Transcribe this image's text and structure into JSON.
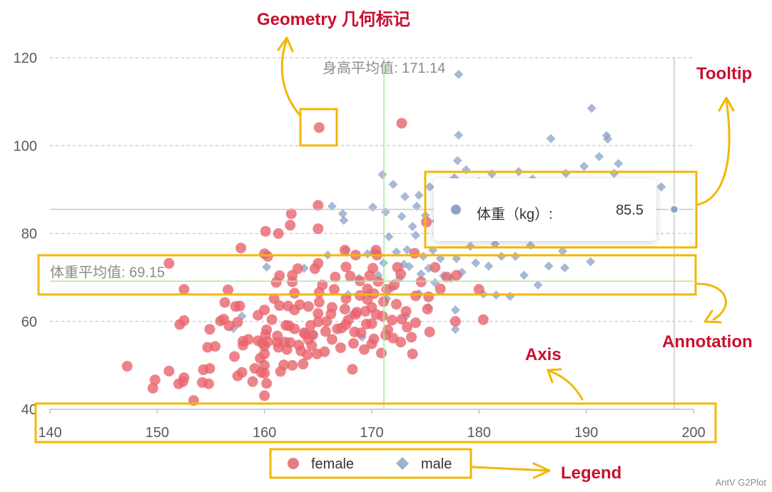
{
  "callouts": {
    "geometry": "Geometry 几何标记",
    "tooltip": "Tooltip",
    "annotation": "Annotation",
    "axis": "Axis",
    "legend": "Legend"
  },
  "tooltip": {
    "name": "体重（kg）:",
    "value": "85.5",
    "color": "#8ba2c9"
  },
  "watermark": "AntV G2Plot",
  "colors": {
    "female": "#e8646d",
    "male": "#8ba2c9",
    "callout_text": "#c8102e",
    "callout_box": "#f2b705",
    "mean_line": "#a8e89a"
  },
  "chart_data": {
    "type": "scatter",
    "title": "",
    "xlabel": "",
    "ylabel": "",
    "xlim": [
      140,
      200
    ],
    "ylim": [
      40,
      120
    ],
    "xticks": [
      "140",
      "150",
      "160",
      "170",
      "180",
      "190",
      "200"
    ],
    "yticks": [
      "40",
      "60",
      "80",
      "100",
      "120"
    ],
    "grid": "horizontal dashed",
    "legend": {
      "position": "bottom",
      "entries": [
        "female",
        "male"
      ]
    },
    "annotations": {
      "height_mean_label": "身高平均值: 171.14",
      "height_mean": 171.14,
      "weight_mean_label": "体重平均值: 69.15",
      "weight_mean": 69.15
    },
    "crosshair": {
      "x": 198.2,
      "y": 85.5
    },
    "series": [
      {
        "name": "female",
        "shape": "circle",
        "points": [
          [
            147.2,
            49.8
          ],
          [
            149.6,
            44.8
          ],
          [
            149.8,
            46.7
          ],
          [
            151.1,
            48.7
          ],
          [
            152.0,
            45.8
          ],
          [
            152.4,
            46.3
          ],
          [
            152.5,
            47.2
          ],
          [
            152.1,
            59.3
          ],
          [
            152.5,
            60.2
          ],
          [
            151.1,
            73.2
          ],
          [
            152.5,
            67.3
          ],
          [
            153.4,
            42.0
          ],
          [
            154.2,
            46.1
          ],
          [
            154.8,
            45.8
          ],
          [
            154.3,
            49.0
          ],
          [
            154.9,
            49.3
          ],
          [
            154.7,
            54.1
          ],
          [
            154.9,
            58.2
          ],
          [
            155.4,
            54.3
          ],
          [
            155.9,
            60.1
          ],
          [
            156.3,
            64.3
          ],
          [
            156.2,
            60.5
          ],
          [
            156.6,
            67.2
          ],
          [
            157.2,
            52.0
          ],
          [
            156.7,
            59.0
          ],
          [
            157.3,
            63.4
          ],
          [
            157.5,
            47.6
          ],
          [
            157.5,
            59.8
          ],
          [
            157.7,
            63.5
          ],
          [
            158.0,
            54.6
          ],
          [
            158.0,
            55.5
          ],
          [
            157.9,
            48.4
          ],
          [
            157.8,
            76.7
          ],
          [
            158.9,
            46.3
          ],
          [
            159.4,
            55.6
          ],
          [
            159.7,
            48.4
          ],
          [
            159.1,
            49.3
          ],
          [
            160.0,
            50.0
          ],
          [
            160.0,
            48.2
          ],
          [
            159.6,
            51.6
          ],
          [
            159.8,
            55.1
          ],
          [
            160.0,
            54.4
          ],
          [
            160.1,
            57.0
          ],
          [
            160.2,
            58.1
          ],
          [
            159.4,
            61.4
          ],
          [
            160.0,
            62.6
          ],
          [
            160.0,
            43.1
          ],
          [
            160.2,
            45.9
          ],
          [
            160.0,
            52.6
          ],
          [
            160.3,
            55.4
          ],
          [
            160.7,
            60.4
          ],
          [
            160.0,
            75.4
          ],
          [
            160.3,
            74.8
          ],
          [
            160.1,
            80.5
          ],
          [
            160.9,
            65.2
          ],
          [
            161.5,
            48.6
          ],
          [
            161.2,
            55.2
          ],
          [
            161.4,
            63.6
          ],
          [
            161.1,
            68.9
          ],
          [
            161.3,
            80.0
          ],
          [
            161.4,
            70.4
          ],
          [
            161.8,
            50.1
          ],
          [
            161.3,
            54.1
          ],
          [
            161.9,
            55.3
          ],
          [
            161.2,
            56.7
          ],
          [
            162.1,
            53.6
          ],
          [
            162.0,
            59.1
          ],
          [
            162.3,
            59.0
          ],
          [
            162.6,
            50.0
          ],
          [
            162.8,
            58.3
          ],
          [
            162.4,
            55.2
          ],
          [
            162.8,
            62.6
          ],
          [
            162.6,
            69.0
          ],
          [
            162.6,
            70.5
          ],
          [
            162.8,
            66.4
          ],
          [
            162.5,
            84.5
          ],
          [
            162.4,
            81.9
          ],
          [
            163.1,
            72.0
          ],
          [
            163.3,
            63.8
          ],
          [
            163.4,
            53.3
          ],
          [
            163.2,
            54.6
          ],
          [
            163.7,
            57.4
          ],
          [
            163.6,
            50.3
          ],
          [
            164.0,
            52.4
          ],
          [
            164.1,
            55.9
          ],
          [
            164.3,
            59.1
          ],
          [
            164.4,
            54.5
          ],
          [
            164.1,
            63.4
          ],
          [
            164.7,
            72.0
          ],
          [
            164.5,
            56.9
          ],
          [
            164.9,
            52.6
          ],
          [
            165.0,
            59.9
          ],
          [
            165.0,
            61.8
          ],
          [
            165.1,
            64.4
          ],
          [
            165.1,
            66.6
          ],
          [
            165.4,
            68.3
          ],
          [
            165.6,
            53.1
          ],
          [
            165.0,
            73.2
          ],
          [
            165.0,
            81.1
          ],
          [
            165.0,
            86.4
          ],
          [
            165.1,
            104.1
          ],
          [
            165.7,
            57.7
          ],
          [
            165.8,
            60.0
          ],
          [
            166.3,
            55.9
          ],
          [
            166.3,
            63.2
          ],
          [
            166.5,
            67.3
          ],
          [
            166.6,
            70.1
          ],
          [
            166.8,
            58.3
          ],
          [
            167.1,
            54.0
          ],
          [
            167.2,
            58.5
          ],
          [
            167.6,
            59.3
          ],
          [
            167.5,
            62.8
          ],
          [
            167.6,
            65.2
          ],
          [
            167.6,
            72.4
          ],
          [
            167.5,
            76.2
          ],
          [
            167.8,
            60.3
          ],
          [
            168.2,
            49.1
          ],
          [
            168.3,
            55.0
          ],
          [
            168.4,
            57.6
          ],
          [
            168.5,
            61.6
          ],
          [
            168.6,
            62.1
          ],
          [
            168.9,
            65.9
          ],
          [
            168.9,
            69.2
          ],
          [
            168.5,
            75.1
          ],
          [
            169.3,
            53.6
          ],
          [
            169.5,
            59.4
          ],
          [
            169.4,
            62.3
          ],
          [
            169.6,
            65.0
          ],
          [
            169.6,
            67.4
          ],
          [
            169.8,
            70.4
          ],
          [
            170.0,
            54.9
          ],
          [
            170.2,
            56.0
          ],
          [
            170.0,
            59.5
          ],
          [
            170.4,
            61.6
          ],
          [
            170.0,
            63.2
          ],
          [
            170.2,
            66.3
          ],
          [
            170.6,
            69.1
          ],
          [
            170.1,
            72.1
          ],
          [
            170.5,
            75.1
          ],
          [
            170.4,
            76.2
          ],
          [
            170.9,
            52.8
          ],
          [
            171.3,
            56.9
          ],
          [
            171.1,
            64.5
          ],
          [
            171.4,
            67.3
          ],
          [
            171.5,
            58.1
          ],
          [
            172.0,
            56.2
          ],
          [
            171.9,
            60.3
          ],
          [
            172.3,
            63.9
          ],
          [
            172.1,
            68.3
          ],
          [
            172.4,
            72.3
          ],
          [
            172.7,
            55.3
          ],
          [
            172.8,
            60.5
          ],
          [
            172.7,
            70.8
          ],
          [
            172.8,
            105.1
          ],
          [
            173.3,
            58.7
          ],
          [
            173.2,
            62.3
          ],
          [
            173.8,
            52.6
          ],
          [
            173.7,
            56.4
          ],
          [
            174.1,
            59.7
          ],
          [
            174.1,
            65.8
          ],
          [
            174.0,
            75.5
          ],
          [
            174.6,
            69.0
          ],
          [
            175.4,
            57.6
          ],
          [
            175.2,
            62.8
          ],
          [
            175.3,
            65.6
          ],
          [
            175.1,
            82.6
          ],
          [
            175.9,
            72.3
          ],
          [
            176.4,
            67.4
          ],
          [
            177.0,
            70.1
          ],
          [
            177.8,
            60.0
          ],
          [
            177.9,
            70.5
          ],
          [
            180.0,
            67.3
          ],
          [
            180.4,
            60.4
          ],
          [
            158.5,
            55.9
          ],
          [
            162.2,
            63.5
          ],
          [
            163.8,
            57.1
          ],
          [
            166.2,
            61.7
          ],
          [
            168.0,
            70.3
          ],
          [
            169.0,
            57.4
          ],
          [
            171.0,
            61.2
          ]
        ]
      },
      {
        "name": "male",
        "shape": "diamond",
        "points": [
          [
            157.1,
            58.4
          ],
          [
            157.9,
            61.2
          ],
          [
            160.2,
            72.4
          ],
          [
            163.7,
            72.1
          ],
          [
            164.6,
            57.1
          ],
          [
            165.9,
            75.1
          ],
          [
            166.3,
            86.2
          ],
          [
            167.3,
            84.5
          ],
          [
            167.4,
            83.0
          ],
          [
            167.6,
            76.3
          ],
          [
            167.8,
            66.1
          ],
          [
            168.2,
            61.6
          ],
          [
            168.8,
            69.8
          ],
          [
            169.1,
            56.4
          ],
          [
            169.6,
            75.4
          ],
          [
            169.7,
            66.5
          ],
          [
            170.1,
            86.0
          ],
          [
            170.2,
            75.8
          ],
          [
            170.6,
            70.5
          ],
          [
            171.0,
            93.4
          ],
          [
            171.1,
            73.3
          ],
          [
            171.3,
            84.9
          ],
          [
            171.4,
            65.2
          ],
          [
            171.6,
            79.3
          ],
          [
            171.9,
            67.6
          ],
          [
            172.0,
            91.2
          ],
          [
            172.3,
            75.8
          ],
          [
            172.6,
            69.8
          ],
          [
            172.8,
            83.9
          ],
          [
            173.0,
            73.0
          ],
          [
            173.1,
            88.4
          ],
          [
            173.2,
            61.2
          ],
          [
            173.3,
            76.3
          ],
          [
            173.5,
            72.5
          ],
          [
            173.8,
            81.6
          ],
          [
            174.1,
            79.6
          ],
          [
            174.2,
            86.2
          ],
          [
            174.4,
            66.3
          ],
          [
            174.4,
            88.7
          ],
          [
            174.6,
            70.8
          ],
          [
            174.8,
            74.8
          ],
          [
            175.0,
            84.1
          ],
          [
            175.3,
            63.2
          ],
          [
            175.3,
            72.1
          ],
          [
            175.4,
            90.6
          ],
          [
            175.7,
            76.2
          ],
          [
            175.9,
            68.8
          ],
          [
            176.0,
            82.8
          ],
          [
            176.2,
            87.5
          ],
          [
            176.4,
            74.3
          ],
          [
            176.6,
            91.2
          ],
          [
            176.7,
            70.4
          ],
          [
            176.9,
            79.2
          ],
          [
            177.2,
            84.6
          ],
          [
            177.4,
            69.8
          ],
          [
            177.5,
            85.4
          ],
          [
            177.7,
            92.7
          ],
          [
            177.8,
            58.2
          ],
          [
            177.8,
            62.6
          ],
          [
            177.9,
            74.3
          ],
          [
            178.0,
            80.0
          ],
          [
            178.0,
            96.6
          ],
          [
            178.1,
            102.4
          ],
          [
            178.1,
            116.2
          ],
          [
            178.4,
            71.2
          ],
          [
            178.6,
            87.3
          ],
          [
            178.8,
            94.5
          ],
          [
            179.2,
            77.1
          ],
          [
            179.3,
            82.6
          ],
          [
            179.5,
            89.4
          ],
          [
            179.7,
            73.3
          ],
          [
            180.0,
            91.8
          ],
          [
            180.2,
            79.5
          ],
          [
            180.4,
            66.2
          ],
          [
            180.6,
            84.2
          ],
          [
            180.9,
            72.6
          ],
          [
            181.2,
            93.6
          ],
          [
            181.5,
            77.6
          ],
          [
            181.6,
            66.0
          ],
          [
            181.8,
            86.9
          ],
          [
            182.1,
            74.8
          ],
          [
            182.3,
            90.9
          ],
          [
            182.7,
            79.2
          ],
          [
            182.9,
            65.7
          ],
          [
            183.2,
            86.3
          ],
          [
            183.4,
            74.8
          ],
          [
            183.7,
            94.1
          ],
          [
            183.9,
            81.1
          ],
          [
            184.2,
            70.5
          ],
          [
            184.6,
            89.4
          ],
          [
            184.8,
            77.3
          ],
          [
            185.0,
            92.4
          ],
          [
            185.3,
            83.2
          ],
          [
            185.5,
            68.3
          ],
          [
            185.9,
            80.2
          ],
          [
            186.2,
            87.9
          ],
          [
            186.5,
            72.6
          ],
          [
            186.7,
            101.6
          ],
          [
            187.0,
            84.3
          ],
          [
            187.5,
            90.9
          ],
          [
            187.8,
            76.0
          ],
          [
            188.1,
            93.7
          ],
          [
            188.0,
            72.2
          ],
          [
            188.6,
            82.4
          ],
          [
            189.2,
            88.7
          ],
          [
            189.8,
            95.3
          ],
          [
            190.5,
            108.5
          ],
          [
            190.4,
            73.6
          ],
          [
            190.6,
            89.0
          ],
          [
            191.2,
            97.5
          ],
          [
            191.9,
            102.3
          ],
          [
            192.0,
            101.5
          ],
          [
            192.1,
            89.4
          ],
          [
            192.6,
            93.7
          ],
          [
            193.0,
            95.9
          ],
          [
            193.8,
            80.4
          ],
          [
            195.2,
            86.3
          ],
          [
            196.1,
            84.2
          ],
          [
            197.0,
            90.6
          ],
          [
            183.0,
            88.4
          ]
        ]
      }
    ]
  }
}
